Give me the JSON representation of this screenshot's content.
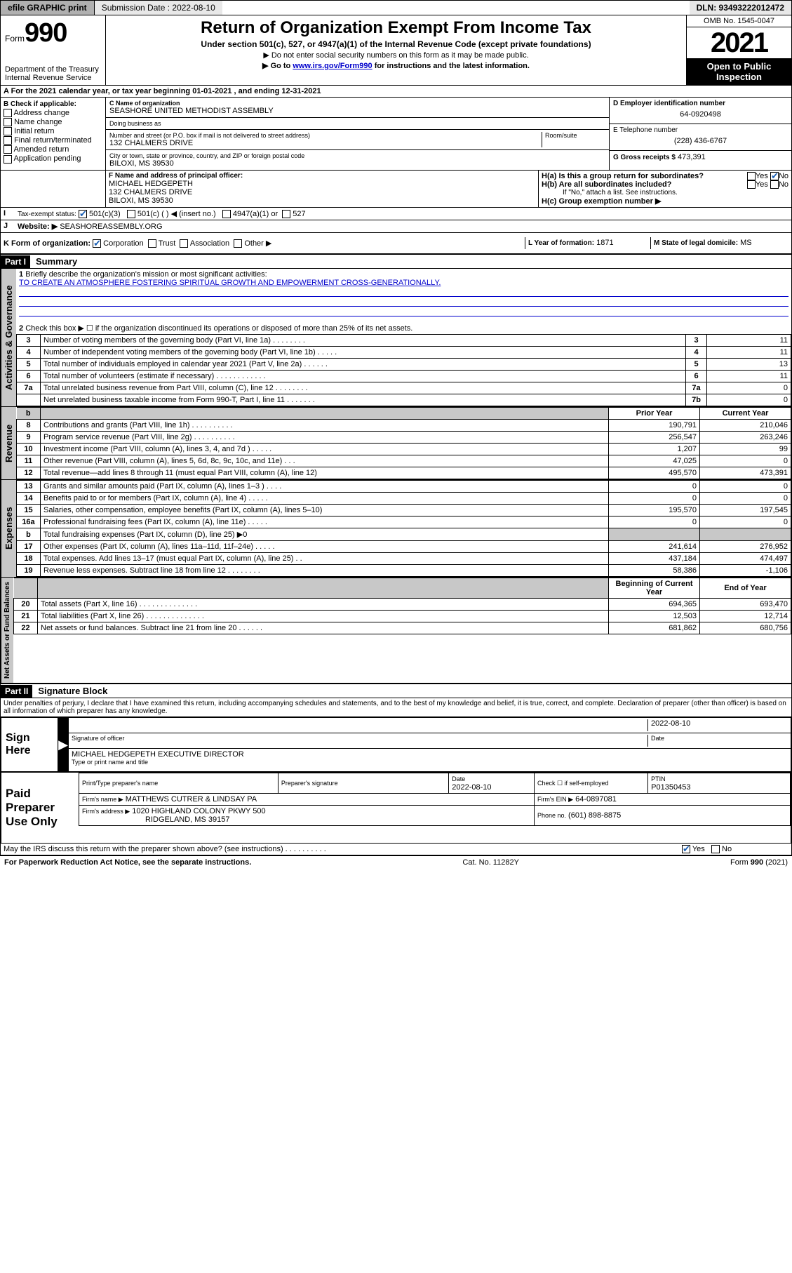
{
  "topbar": {
    "efile": "efile GRAPHIC print",
    "submission_label": "Submission Date : 2022-08-10",
    "dln": "DLN: 93493222012472"
  },
  "header": {
    "form_word": "Form",
    "form_num": "990",
    "dept": "Department of the Treasury",
    "irs": "Internal Revenue Service",
    "title": "Return of Organization Exempt From Income Tax",
    "sub1": "Under section 501(c), 527, or 4947(a)(1) of the Internal Revenue Code (except private foundations)",
    "sub2": "▶ Do not enter social security numbers on this form as it may be made public.",
    "sub3_pre": "▶ Go to ",
    "sub3_link": "www.irs.gov/Form990",
    "sub3_post": " for instructions and the latest information.",
    "omb": "OMB No. 1545-0047",
    "year": "2021",
    "open": "Open to Public Inspection"
  },
  "lineA": {
    "text_pre": "A For the 2021 calendar year, or tax year beginning ",
    "begin": "01-01-2021",
    "mid": " , and ending ",
    "end": "12-31-2021"
  },
  "boxB": {
    "label": "B Check if applicable:",
    "items": [
      "Address change",
      "Name change",
      "Initial return",
      "Final return/terminated",
      "Amended return",
      "Application pending"
    ]
  },
  "boxC": {
    "name_label": "C Name of organization",
    "name": "SEASHORE UNITED METHODIST ASSEMBLY",
    "dba_label": "Doing business as",
    "dba": "",
    "addr_label": "Number and street (or P.O. box if mail is not delivered to street address)",
    "room_label": "Room/suite",
    "addr": "132 CHALMERS DRIVE",
    "city_label": "City or town, state or province, country, and ZIP or foreign postal code",
    "city": "BILOXI, MS  39530"
  },
  "boxD": {
    "label": "D Employer identification number",
    "value": "64-0920498"
  },
  "boxE": {
    "label": "E Telephone number",
    "value": "(228) 436-6767"
  },
  "boxG": {
    "label": "G Gross receipts $",
    "value": "473,391"
  },
  "boxF": {
    "label": "F  Name and address of principal officer:",
    "name": "MICHAEL HEDGEPETH",
    "addr1": "132 CHALMERS DRIVE",
    "addr2": "BILOXI, MS  39530"
  },
  "boxH": {
    "a": "H(a)  Is this a group return for subordinates?",
    "b": "H(b)  Are all subordinates included?",
    "b_note": "If \"No,\" attach a list. See instructions.",
    "c": "H(c)  Group exemption number ▶",
    "yes": "Yes",
    "no": "No"
  },
  "boxI": {
    "label": "Tax-exempt status:",
    "o1": "501(c)(3)",
    "o2": "501(c) (  ) ◀ (insert no.)",
    "o3": "4947(a)(1) or",
    "o4": "527"
  },
  "boxJ": {
    "label": "Website: ▶",
    "value": "SEASHOREASSEMBLY.ORG"
  },
  "boxK": {
    "label": "K Form of organization:",
    "o1": "Corporation",
    "o2": "Trust",
    "o3": "Association",
    "o4": "Other ▶"
  },
  "boxL": {
    "label": "L Year of formation:",
    "value": "1871"
  },
  "boxM": {
    "label": "M State of legal domicile:",
    "value": "MS"
  },
  "part1": {
    "bar": "Part I",
    "title": "Summary"
  },
  "summary": {
    "q1": "Briefly describe the organization's mission or most significant activities:",
    "mission": "TO CREATE AN ATMOSPHERE FOSTERING SPIRITUAL GROWTH AND EMPOWERMENT CROSS-GENERATIONALLY.",
    "q2": "Check this box ▶ ☐  if the organization discontinued its operations or disposed of more than 25% of its net assets.",
    "rows_gov": [
      {
        "n": "3",
        "d": "Number of voting members of the governing body (Part VI, line 1a)   .    .    .    .    .    .    .    .",
        "lab": "3",
        "v": "11"
      },
      {
        "n": "4",
        "d": "Number of independent voting members of the governing body (Part VI, line 1b)   .    .    .    .    .",
        "lab": "4",
        "v": "11"
      },
      {
        "n": "5",
        "d": "Total number of individuals employed in calendar year 2021 (Part V, line 2a)   .    .    .    .    .    .",
        "lab": "5",
        "v": "13"
      },
      {
        "n": "6",
        "d": "Total number of volunteers (estimate if necessary)   .    .    .    .    .    .    .    .    .    .    .    .",
        "lab": "6",
        "v": "11"
      },
      {
        "n": "7a",
        "d": "Total unrelated business revenue from Part VIII, column (C), line 12   .    .    .    .    .    .    .    .",
        "lab": "7a",
        "v": "0"
      },
      {
        "n": "",
        "d": "Net unrelated business taxable income from Form 990-T, Part I, line 11   .    .    .    .    .    .    .",
        "lab": "7b",
        "v": "0"
      }
    ],
    "col_prior": "Prior Year",
    "col_curr": "Current Year",
    "rows_rev": [
      {
        "n": "8",
        "d": "Contributions and grants (Part VIII, line 1h)   .    .    .    .    .    .    .    .    .    .",
        "p": "190,791",
        "c": "210,046"
      },
      {
        "n": "9",
        "d": "Program service revenue (Part VIII, line 2g)   .    .    .    .    .    .    .    .    .    .",
        "p": "256,547",
        "c": "263,246"
      },
      {
        "n": "10",
        "d": "Investment income (Part VIII, column (A), lines 3, 4, and 7d )   .    .    .    .    .",
        "p": "1,207",
        "c": "99"
      },
      {
        "n": "11",
        "d": "Other revenue (Part VIII, column (A), lines 5, 6d, 8c, 9c, 10c, and 11e)   .    .    .",
        "p": "47,025",
        "c": "0"
      },
      {
        "n": "12",
        "d": "Total revenue—add lines 8 through 11 (must equal Part VIII, column (A), line 12)",
        "p": "495,570",
        "c": "473,391"
      }
    ],
    "rows_exp": [
      {
        "n": "13",
        "d": "Grants and similar amounts paid (Part IX, column (A), lines 1–3 )   .    .    .    .",
        "p": "0",
        "c": "0"
      },
      {
        "n": "14",
        "d": "Benefits paid to or for members (Part IX, column (A), line 4)   .    .    .    .    .",
        "p": "0",
        "c": "0"
      },
      {
        "n": "15",
        "d": "Salaries, other compensation, employee benefits (Part IX, column (A), lines 5–10)",
        "p": "195,570",
        "c": "197,545"
      },
      {
        "n": "16a",
        "d": "Professional fundraising fees (Part IX, column (A), line 11e)   .    .    .    .    .",
        "p": "0",
        "c": "0"
      },
      {
        "n": "b",
        "d": "Total fundraising expenses (Part IX, column (D), line 25) ▶0",
        "p": "",
        "c": "",
        "gray": true
      },
      {
        "n": "17",
        "d": "Other expenses (Part IX, column (A), lines 11a–11d, 11f–24e)   .    .    .    .    .",
        "p": "241,614",
        "c": "276,952"
      },
      {
        "n": "18",
        "d": "Total expenses. Add lines 13–17 (must equal Part IX, column (A), line 25)   .    .",
        "p": "437,184",
        "c": "474,497"
      },
      {
        "n": "19",
        "d": "Revenue less expenses. Subtract line 18 from line 12   .    .    .    .    .    .    .    .",
        "p": "58,386",
        "c": "-1,106"
      }
    ],
    "col_boy": "Beginning of Current Year",
    "col_eoy": "End of Year",
    "rows_net": [
      {
        "n": "20",
        "d": "Total assets (Part X, line 16)   .    .    .    .    .    .    .    .    .    .    .    .    .    .",
        "p": "694,365",
        "c": "693,470"
      },
      {
        "n": "21",
        "d": "Total liabilities (Part X, line 26)   .    .    .    .    .    .    .    .    .    .    .    .    .    .",
        "p": "12,503",
        "c": "12,714"
      },
      {
        "n": "22",
        "d": "Net assets or fund balances. Subtract line 21 from line 20   .    .    .    .    .    .",
        "p": "681,862",
        "c": "680,756"
      }
    ],
    "tabs": {
      "gov": "Activities & Governance",
      "rev": "Revenue",
      "exp": "Expenses",
      "net": "Net Assets or Fund Balances"
    }
  },
  "part2": {
    "bar": "Part II",
    "title": "Signature Block"
  },
  "sig": {
    "penalty": "Under penalties of perjury, I declare that I have examined this return, including accompanying schedules and statements, and to the best of my knowledge and belief, it is true, correct, and complete. Declaration of preparer (other than officer) is based on all information of which preparer has any knowledge.",
    "sign_here": "Sign Here",
    "sig_officer": "Signature of officer",
    "date": "Date",
    "sig_date": "2022-08-10",
    "name_title": "MICHAEL HEDGEPETH  EXECUTIVE DIRECTOR",
    "name_title_lab": "Type or print name and title",
    "paid": "Paid Preparer Use Only",
    "h_name": "Print/Type preparer's name",
    "h_sig": "Preparer's signature",
    "h_date": "Date",
    "h_check": "Check ☐ if self-employed",
    "h_ptin": "PTIN",
    "prep_date": "2022-08-10",
    "ptin": "P01350453",
    "firm_name_lab": "Firm's name    ▶",
    "firm_name": "MATTHEWS CUTRER & LINDSAY PA",
    "firm_ein_lab": "Firm's EIN ▶",
    "firm_ein": "64-0897081",
    "firm_addr_lab": "Firm's address ▶",
    "firm_addr1": "1020 HIGHLAND COLONY PKWY 500",
    "firm_addr2": "RIDGELAND, MS  39157",
    "phone_lab": "Phone no.",
    "phone": "(601) 898-8875",
    "may": "May the IRS discuss this return with the preparer shown above? (see instructions)   .    .    .    .    .    .    .    .    .    .",
    "yes": "Yes",
    "no": "No"
  },
  "footer": {
    "left": "For Paperwork Reduction Act Notice, see the separate instructions.",
    "mid": "Cat. No. 11282Y",
    "right": "Form 990 (2021)"
  }
}
